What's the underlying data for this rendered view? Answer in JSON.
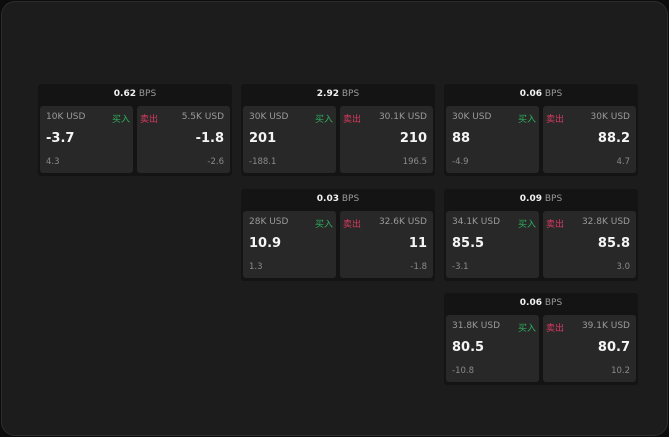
{
  "labels": {
    "unit": "BPS",
    "buy": "买入",
    "sell": "卖出"
  },
  "colors": {
    "buy": "#2fae5c",
    "sell": "#d83a5f"
  },
  "cards": [
    {
      "spread": "0.62",
      "bid_size": "10K USD",
      "bid": "-3.7",
      "bid_chg": "4.3",
      "ask_size": "5.5K USD",
      "ask": "-1.8",
      "ask_chg": "-2.6"
    },
    {
      "spread": "2.92",
      "bid_size": "30K USD",
      "bid": "201",
      "bid_chg": "-188.1",
      "ask_size": "30.1K USD",
      "ask": "210",
      "ask_chg": "196.5"
    },
    {
      "spread": "0.06",
      "bid_size": "30K USD",
      "bid": "88",
      "bid_chg": "-4.9",
      "ask_size": "30K USD",
      "ask": "88.2",
      "ask_chg": "4.7"
    },
    {
      "spread": "0.03",
      "bid_size": "28K USD",
      "bid": "10.9",
      "bid_chg": "1.3",
      "ask_size": "32.6K USD",
      "ask": "11",
      "ask_chg": "-1.8"
    },
    {
      "spread": "0.09",
      "bid_size": "34.1K USD",
      "bid": "85.5",
      "bid_chg": "-3.1",
      "ask_size": "32.8K USD",
      "ask": "85.8",
      "ask_chg": "3.0"
    },
    {
      "spread": "0.06",
      "bid_size": "31.8K USD",
      "bid": "80.5",
      "bid_chg": "-10.8",
      "ask_size": "39.1K USD",
      "ask": "80.7",
      "ask_chg": "10.2"
    }
  ]
}
